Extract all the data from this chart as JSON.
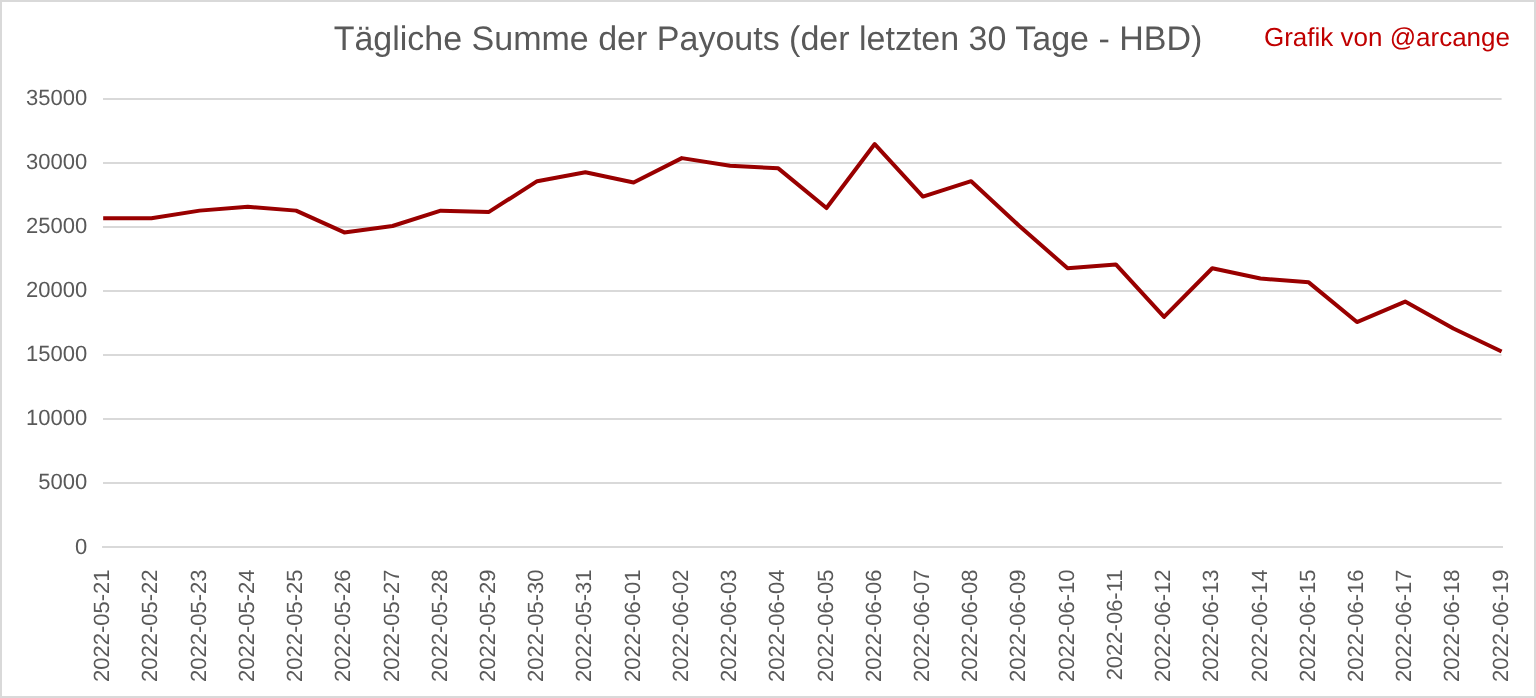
{
  "chart_data": {
    "type": "line",
    "title": "Tägliche Summe der Payouts (der letzten 30 Tage - HBD)",
    "annotations": [
      "Grafik von @arcange"
    ],
    "categories": [
      "2022-05-21",
      "2022-05-22",
      "2022-05-23",
      "2022-05-24",
      "2022-05-25",
      "2022-05-26",
      "2022-05-27",
      "2022-05-28",
      "2022-05-29",
      "2022-05-30",
      "2022-05-31",
      "2022-06-01",
      "2022-06-02",
      "2022-06-03",
      "2022-06-04",
      "2022-06-05",
      "2022-06-06",
      "2022-06-07",
      "2022-06-08",
      "2022-06-09",
      "2022-06-10",
      "2022-06-11",
      "2022-06-12",
      "2022-06-13",
      "2022-06-14",
      "2022-06-15",
      "2022-06-16",
      "2022-06-17",
      "2022-06-18",
      "2022-06-19"
    ],
    "series": [
      {
        "color": "#990000",
        "values": [
          25700,
          25700,
          26300,
          26600,
          26300,
          24600,
          25100,
          26300,
          26200,
          28600,
          29300,
          28500,
          30400,
          29800,
          29600,
          26500,
          31500,
          27400,
          28600,
          25100,
          21800,
          22100,
          18000,
          21800,
          21000,
          20700,
          17600,
          19200,
          17100,
          15300
        ]
      }
    ],
    "ylim": [
      0,
      35000
    ],
    "yticks": [
      0,
      5000,
      10000,
      15000,
      20000,
      25000,
      30000,
      35000
    ],
    "grid": "y",
    "legend": false,
    "marker": "none",
    "line_style": "solid"
  }
}
